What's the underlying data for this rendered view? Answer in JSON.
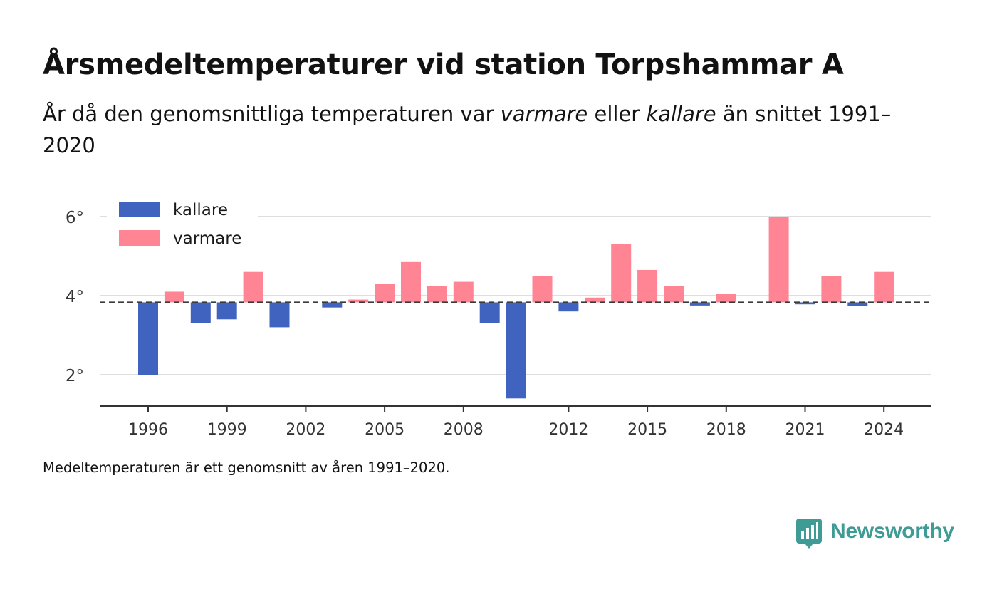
{
  "header": {
    "title": "Årsmedeltemperaturer vid station Torpshammar A",
    "subtitle_start": "År då den genomsnittliga temperaturen var ",
    "subtitle_warmer": "varmare",
    "subtitle_middle": " eller ",
    "subtitle_colder": "kallare",
    "subtitle_end": " än snittet 1991–2020"
  },
  "footnote": "Medeltemperaturen är ett genomsnitt av åren 1991–2020.",
  "brand": {
    "name": "Newsworthy",
    "color": "#3e9b96"
  },
  "chart_data": {
    "type": "bar",
    "baseline": 3.83,
    "ylim": [
      1.2,
      6.5
    ],
    "yticks": [
      2,
      4,
      6
    ],
    "ytick_labels": [
      "2°",
      "4°",
      "6°"
    ],
    "xticks": [
      1996,
      1999,
      2002,
      2005,
      2008,
      2012,
      2015,
      2018,
      2021,
      2024
    ],
    "xtick_labels": [
      "1996",
      "1999",
      "2002",
      "2005",
      "2008",
      "2012",
      "2015",
      "2018",
      "2021",
      "2024"
    ],
    "grid": true,
    "legend": {
      "position": "top-left",
      "items": [
        {
          "label": "kallare",
          "color": "#4163c0"
        },
        {
          "label": "varmare",
          "color": "#ff8595"
        }
      ]
    },
    "colors": {
      "colder": "#4163c0",
      "warmer": "#ff8595"
    },
    "x": [
      1996,
      1997,
      1998,
      1999,
      2000,
      2001,
      2002,
      2003,
      2004,
      2005,
      2006,
      2007,
      2008,
      2009,
      2010,
      2011,
      2012,
      2013,
      2014,
      2015,
      2016,
      2017,
      2018,
      2019,
      2020,
      2021,
      2022,
      2023,
      2024
    ],
    "values": [
      2.0,
      4.1,
      3.3,
      3.4,
      4.6,
      3.2,
      3.83,
      3.7,
      3.9,
      4.3,
      4.85,
      4.25,
      4.35,
      3.3,
      1.4,
      4.5,
      3.6,
      3.95,
      5.3,
      4.65,
      4.25,
      3.75,
      4.05,
      3.83,
      6.0,
      3.78,
      4.5,
      3.73,
      4.6
    ]
  }
}
